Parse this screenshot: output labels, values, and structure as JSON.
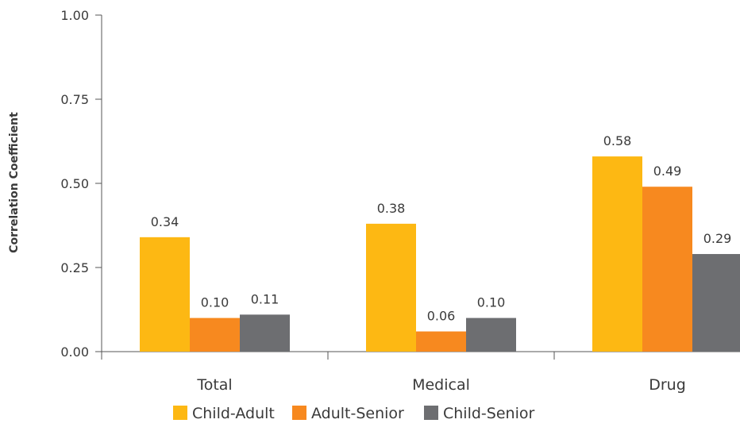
{
  "chart_data": {
    "type": "bar",
    "ylabel": "Correlation Coefficient",
    "xlabel": "",
    "ylim": [
      0,
      1
    ],
    "yticks": [
      "0.00",
      "0.25",
      "0.50",
      "0.75",
      "1.00"
    ],
    "ytick_values": [
      0,
      0.25,
      0.5,
      0.75,
      1
    ],
    "categories": [
      "Total",
      "Medical",
      "Drug"
    ],
    "series": [
      {
        "name": "Child-Adult",
        "values": [
          0.34,
          0.38,
          0.58
        ],
        "labels": [
          "0.34",
          "0.38",
          "0.58"
        ],
        "color": "#FDB813"
      },
      {
        "name": "Adult-Senior",
        "values": [
          0.1,
          0.06,
          0.49
        ],
        "labels": [
          "0.10",
          "0.06",
          "0.49"
        ],
        "color": "#F7891F"
      },
      {
        "name": "Child-Senior",
        "values": [
          0.11,
          0.1,
          0.29
        ],
        "labels": [
          "0.11",
          "0.10",
          "0.29"
        ],
        "color": "#6D6E71"
      }
    ],
    "legend_position": "bottom",
    "grid": false
  }
}
